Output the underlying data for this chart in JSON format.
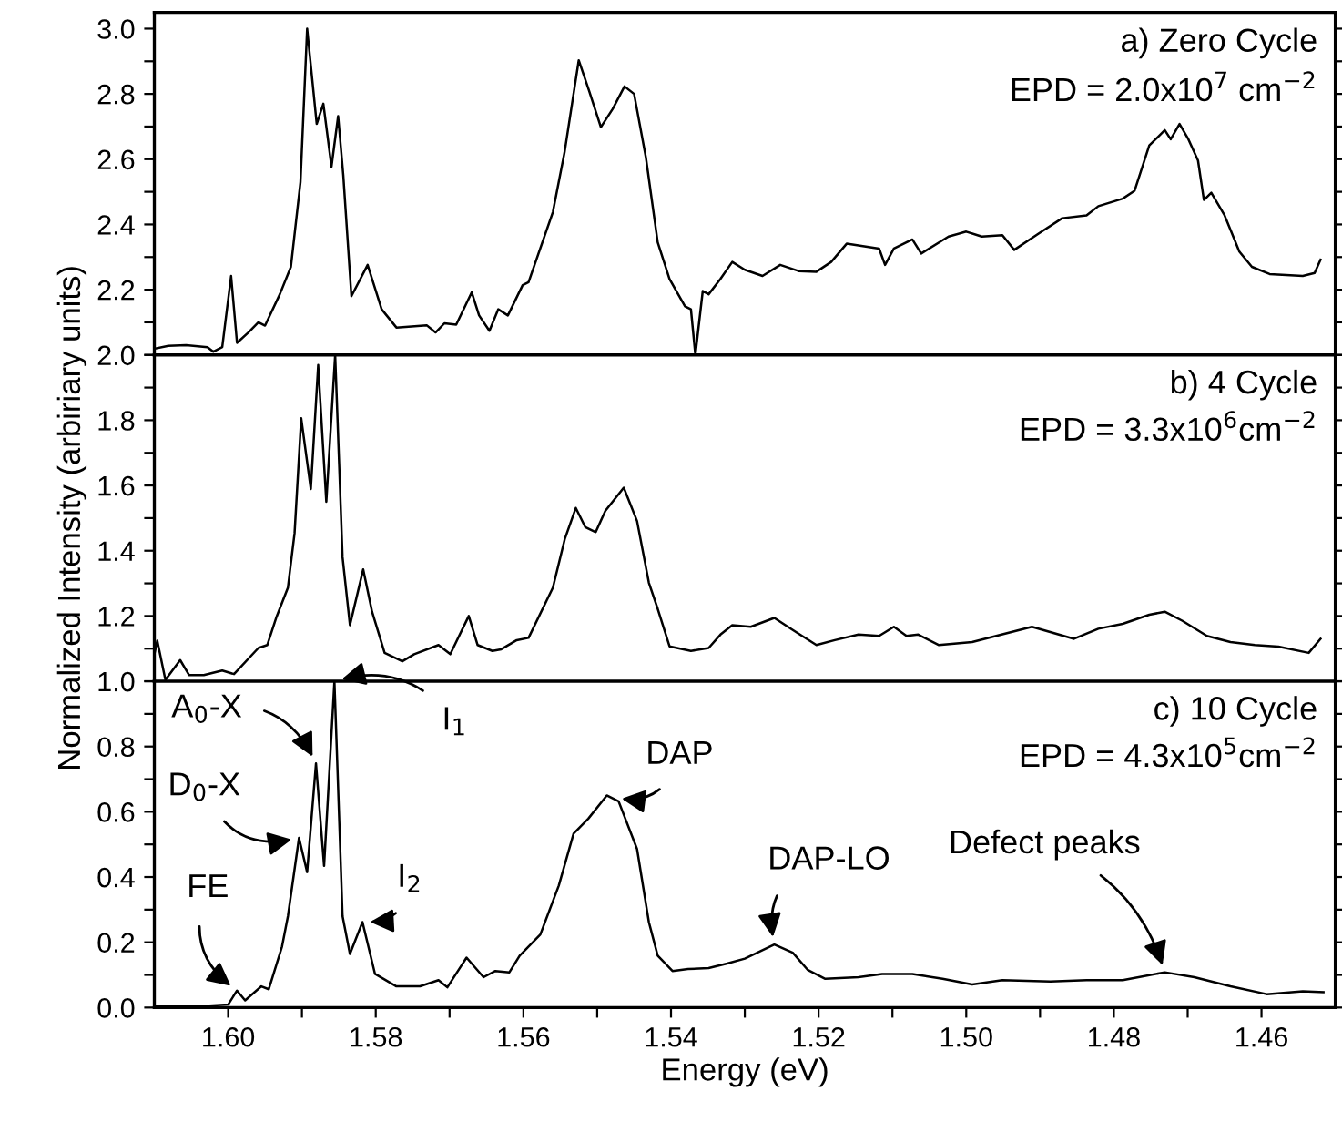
{
  "chart_data": [
    {
      "type": "line",
      "color": "#000000",
      "xlim": [
        1.61,
        1.45
      ],
      "ylim": [
        2.0,
        3.05
      ],
      "xticks": [
        {
          "value": 1.6,
          "label": null
        },
        {
          "value": 1.59,
          "label": null
        },
        {
          "value": 1.58,
          "label": null
        },
        {
          "value": 1.57,
          "label": null
        },
        {
          "value": 1.56,
          "label": null
        },
        {
          "value": 1.55,
          "label": null
        },
        {
          "value": 1.54,
          "label": null
        },
        {
          "value": 1.53,
          "label": null
        },
        {
          "value": 1.52,
          "label": null
        },
        {
          "value": 1.51,
          "label": null
        },
        {
          "value": 1.5,
          "label": null
        },
        {
          "value": 1.49,
          "label": null
        },
        {
          "value": 1.48,
          "label": null
        },
        {
          "value": 1.47,
          "label": null
        },
        {
          "value": 1.46,
          "label": null
        }
      ],
      "yticks": [
        {
          "value": 2.0,
          "label": "2.0"
        },
        {
          "value": 2.1,
          "label": null
        },
        2.2,
        {
          "value": 2.3,
          "label": null
        },
        2.4,
        {
          "value": 2.5,
          "label": null
        },
        2.6,
        {
          "value": 2.7,
          "label": null
        },
        2.8,
        {
          "value": 2.9,
          "label": null
        },
        {
          "value": 3.0,
          "label": "3.0"
        }
      ],
      "tick_labels": "y",
      "annotations": [
        "a) Zero Cycle",
        "EPD = 2.0x10$^{7}$ cm$^{−2}$"
      ],
      "x": [
        1.61,
        1.6081,
        1.6057,
        1.6028,
        1.602,
        1.6008,
        1.5996,
        1.5988,
        1.5972,
        1.5959,
        1.595,
        1.593,
        1.5915,
        1.5902,
        1.5893,
        1.588,
        1.5871,
        1.586,
        1.5851,
        1.5844,
        1.5833,
        1.5811,
        1.5792,
        1.5772,
        1.5731,
        1.5719,
        1.5707,
        1.5691,
        1.567,
        1.566,
        1.5646,
        1.5634,
        1.5621,
        1.5601,
        1.5593,
        1.556,
        1.5544,
        1.5525,
        1.5511,
        1.5495,
        1.5479,
        1.5463,
        1.545,
        1.5434,
        1.5418,
        1.5402,
        1.5381,
        1.5373,
        1.5367,
        1.5357,
        1.5349,
        1.5333,
        1.5317,
        1.53,
        1.5276,
        1.5252,
        1.5227,
        1.5203,
        1.5183,
        1.5162,
        1.5118,
        1.511,
        1.5098,
        1.5073,
        1.5061,
        1.5024,
        1.5,
        1.4979,
        1.4951,
        1.4935,
        1.4902,
        1.487,
        1.4837,
        1.4821,
        1.4788,
        1.4772,
        1.4752,
        1.4731,
        1.4723,
        1.4711,
        1.4699,
        1.4686,
        1.4678,
        1.4668,
        1.465,
        1.463,
        1.4613,
        1.4589,
        1.4544,
        1.4528,
        1.452
      ],
      "values": [
        2.019,
        2.028,
        2.03,
        2.024,
        2.01,
        2.024,
        2.242,
        2.037,
        2.07,
        2.1,
        2.09,
        2.186,
        2.27,
        2.53,
        3.0,
        2.708,
        2.77,
        2.577,
        2.732,
        2.55,
        2.18,
        2.276,
        2.14,
        2.084,
        2.091,
        2.069,
        2.097,
        2.093,
        2.192,
        2.121,
        2.074,
        2.14,
        2.121,
        2.214,
        2.223,
        2.438,
        2.624,
        2.903,
        2.81,
        2.698,
        2.754,
        2.823,
        2.8,
        2.605,
        2.345,
        2.233,
        2.149,
        2.14,
        2.0,
        2.196,
        2.186,
        2.233,
        2.285,
        2.261,
        2.242,
        2.276,
        2.257,
        2.255,
        2.285,
        2.341,
        2.326,
        2.276,
        2.326,
        2.354,
        2.311,
        2.363,
        2.378,
        2.363,
        2.367,
        2.322,
        2.372,
        2.419,
        2.428,
        2.456,
        2.479,
        2.503,
        2.642,
        2.689,
        2.661,
        2.708,
        2.661,
        2.596,
        2.475,
        2.497,
        2.428,
        2.317,
        2.27,
        2.248,
        2.242,
        2.251,
        2.292
      ]
    },
    {
      "type": "line",
      "color": "#000000",
      "xlim": [
        1.61,
        1.45
      ],
      "ylim": [
        1.0,
        2.0
      ],
      "xticks": [
        {
          "value": 1.6,
          "label": null
        },
        {
          "value": 1.59,
          "label": null
        },
        {
          "value": 1.58,
          "label": null
        },
        {
          "value": 1.57,
          "label": null
        },
        {
          "value": 1.56,
          "label": null
        },
        {
          "value": 1.55,
          "label": null
        },
        {
          "value": 1.54,
          "label": null
        },
        {
          "value": 1.53,
          "label": null
        },
        {
          "value": 1.52,
          "label": null
        },
        {
          "value": 1.51,
          "label": null
        },
        {
          "value": 1.5,
          "label": null
        },
        {
          "value": 1.49,
          "label": null
        },
        {
          "value": 1.48,
          "label": null
        },
        {
          "value": 1.47,
          "label": null
        },
        {
          "value": 1.46,
          "label": null
        }
      ],
      "yticks": [
        {
          "value": 1.0,
          "label": "1.0"
        },
        {
          "value": 1.1,
          "label": null
        },
        1.2,
        {
          "value": 1.3,
          "label": null
        },
        1.4,
        {
          "value": 1.5,
          "label": null
        },
        1.6,
        {
          "value": 1.7,
          "label": null
        },
        1.8,
        {
          "value": 1.9,
          "label": null
        },
        {
          "value": 2.0,
          "label": null
        }
      ],
      "tick_labels": "y",
      "ylabel": "Normalized Intensity (arbiriary units)",
      "annotations": [
        "b) 4 Cycle",
        "EPD = 3.3x10$^{6}$cm$^{−2}$"
      ],
      "x": [
        1.61,
        1.6096,
        1.6085,
        1.6065,
        1.6053,
        1.6033,
        1.6008,
        1.5992,
        1.5959,
        1.5947,
        1.5935,
        1.5919,
        1.591,
        1.5901,
        1.5888,
        1.5878,
        1.5867,
        1.5855,
        1.5845,
        1.5835,
        1.5817,
        1.5805,
        1.5788,
        1.5764,
        1.5748,
        1.5715,
        1.5699,
        1.5674,
        1.5662,
        1.5642,
        1.563,
        1.5609,
        1.5593,
        1.556,
        1.5544,
        1.5529,
        1.5516,
        1.5502,
        1.5489,
        1.5464,
        1.5446,
        1.543,
        1.5418,
        1.5402,
        1.5373,
        1.5349,
        1.5333,
        1.5317,
        1.5292,
        1.526,
        1.5235,
        1.5203,
        1.5178,
        1.5146,
        1.5118,
        1.5098,
        1.5081,
        1.5065,
        1.5037,
        1.4992,
        1.4911,
        1.4854,
        1.4821,
        1.4788,
        1.4752,
        1.4731,
        1.4707,
        1.4674,
        1.4642,
        1.4609,
        1.4577,
        1.4536,
        1.452
      ],
      "values": [
        1.083,
        1.124,
        1.004,
        1.065,
        1.019,
        1.019,
        1.033,
        1.022,
        1.102,
        1.111,
        1.194,
        1.287,
        1.454,
        1.806,
        1.589,
        1.969,
        1.55,
        2.0,
        1.38,
        1.172,
        1.343,
        1.213,
        1.087,
        1.061,
        1.083,
        1.111,
        1.083,
        1.2,
        1.111,
        1.093,
        1.098,
        1.126,
        1.133,
        1.287,
        1.435,
        1.531,
        1.472,
        1.457,
        1.522,
        1.593,
        1.491,
        1.302,
        1.222,
        1.107,
        1.093,
        1.102,
        1.143,
        1.172,
        1.167,
        1.194,
        1.157,
        1.111,
        1.126,
        1.143,
        1.139,
        1.167,
        1.139,
        1.143,
        1.111,
        1.12,
        1.167,
        1.13,
        1.161,
        1.176,
        1.204,
        1.213,
        1.185,
        1.139,
        1.12,
        1.111,
        1.106,
        1.087,
        1.13
      ]
    },
    {
      "type": "line",
      "color": "#000000",
      "xlim": [
        1.61,
        1.45
      ],
      "ylim": [
        0.0,
        1.0
      ],
      "xticks": [
        {
          "value": 1.6,
          "label": "1.60"
        },
        {
          "value": 1.59,
          "label": null
        },
        {
          "value": 1.58,
          "label": "1.58"
        },
        {
          "value": 1.57,
          "label": null
        },
        {
          "value": 1.56,
          "label": "1.56"
        },
        {
          "value": 1.55,
          "label": null
        },
        {
          "value": 1.54,
          "label": "1.54"
        },
        {
          "value": 1.53,
          "label": null
        },
        {
          "value": 1.52,
          "label": "1.52"
        },
        {
          "value": 1.51,
          "label": null
        },
        {
          "value": 1.5,
          "label": "1.50"
        },
        {
          "value": 1.49,
          "label": null
        },
        {
          "value": 1.48,
          "label": "1.48"
        },
        {
          "value": 1.47,
          "label": null
        },
        {
          "value": 1.46,
          "label": "1.46"
        }
      ],
      "yticks": [
        {
          "value": 0.0,
          "label": "0.0"
        },
        {
          "value": 0.1,
          "label": null
        },
        0.2,
        {
          "value": 0.3,
          "label": null
        },
        0.4,
        {
          "value": 0.5,
          "label": null
        },
        0.6,
        {
          "value": 0.7,
          "label": null
        },
        0.8,
        {
          "value": 0.9,
          "label": null
        },
        {
          "value": 1.0,
          "label": null
        }
      ],
      "xlabel": "Energy (eV)",
      "annotations": [
        "c) 10 Cycle",
        "EPD = 4.3x10$^{5}$cm$^{−2}$",
        {
          "text": "A$_{0}$-X",
          "x": 1.5881,
          "y": 0.748
        },
        {
          "text": "I$_{1}$",
          "x": 1.5856,
          "y": 1.0
        },
        {
          "text": "D$_{0}$-X",
          "x": 1.5904,
          "y": 0.52
        },
        {
          "text": "FE",
          "x": 1.5988,
          "y": 0.052
        },
        {
          "text": "I$_{2}$",
          "x": 1.5818,
          "y": 0.262
        },
        {
          "text": "DAP",
          "x": 1.5487,
          "y": 0.65
        },
        {
          "text": "DAP-LO",
          "x": 1.526,
          "y": 0.193
        },
        {
          "text": "Defect peaks",
          "x": 1.4731,
          "y": 0.108
        }
      ],
      "x": [
        1.61,
        1.6041,
        1.6,
        1.5988,
        1.5977,
        1.5955,
        1.5945,
        1.5927,
        1.5919,
        1.5904,
        1.5893,
        1.5881,
        1.587,
        1.5856,
        1.5845,
        1.5835,
        1.5818,
        1.5801,
        1.5772,
        1.574,
        1.5715,
        1.5703,
        1.5677,
        1.5654,
        1.5638,
        1.5619,
        1.5605,
        1.5577,
        1.5552,
        1.5532,
        1.5512,
        1.5487,
        1.5471,
        1.5446,
        1.543,
        1.5418,
        1.5398,
        1.5377,
        1.5349,
        1.5324,
        1.53,
        1.526,
        1.5235,
        1.5215,
        1.5191,
        1.5146,
        1.5114,
        1.5073,
        1.5032,
        1.4992,
        1.4951,
        1.4886,
        1.4837,
        1.4788,
        1.4731,
        1.4691,
        1.4642,
        1.4593,
        1.4544,
        1.4516
      ],
      "values": [
        0.004,
        0.004,
        0.009,
        0.052,
        0.022,
        0.065,
        0.056,
        0.187,
        0.28,
        0.52,
        0.415,
        0.748,
        0.434,
        1.0,
        0.28,
        0.164,
        0.262,
        0.103,
        0.065,
        0.065,
        0.084,
        0.062,
        0.153,
        0.093,
        0.112,
        0.108,
        0.159,
        0.224,
        0.374,
        0.533,
        0.579,
        0.65,
        0.632,
        0.486,
        0.262,
        0.159,
        0.112,
        0.118,
        0.121,
        0.135,
        0.15,
        0.193,
        0.168,
        0.116,
        0.088,
        0.093,
        0.103,
        0.103,
        0.088,
        0.071,
        0.084,
        0.08,
        0.084,
        0.084,
        0.108,
        0.093,
        0.065,
        0.041,
        0.05,
        0.047
      ]
    }
  ]
}
